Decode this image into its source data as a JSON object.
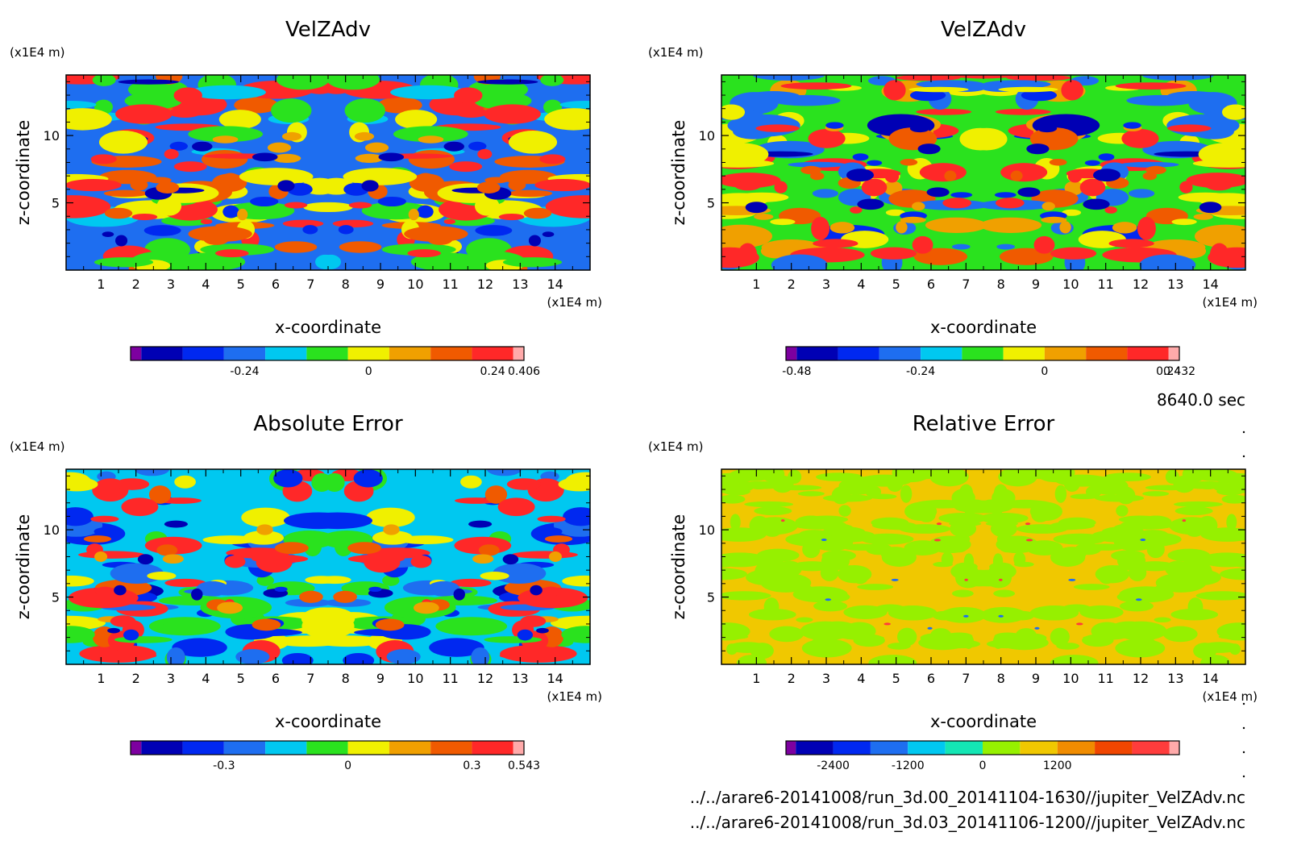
{
  "chart_data": [
    {
      "type": "heatmap",
      "title": "VelZAdv",
      "xlabel": "x-coordinate",
      "ylabel": "z-coordinate",
      "x_unit": "(x1E4 m)",
      "y_unit": "(x1E4 m)",
      "xlim": [
        0,
        15
      ],
      "ylim": [
        0,
        14.5
      ],
      "x_ticks": [
        "1",
        "2",
        "3",
        "4",
        "5",
        "6",
        "7",
        "8",
        "9",
        "10",
        "11",
        "12",
        "13",
        "14"
      ],
      "y_ticks": [
        "5",
        "10"
      ],
      "colorbar": {
        "colors": [
          "#7d00a0",
          "#0000b4",
          "#0028f0",
          "#1e6ef0",
          "#00c8f0",
          "#2ae21e",
          "#f0f000",
          "#f0a000",
          "#f05a00",
          "#ff2828",
          "#ffaaaa"
        ],
        "labels": [
          {
            "value": -0.24,
            "text": "-0.24"
          },
          {
            "value": 0,
            "text": "0"
          },
          {
            "value": 0.24,
            "text": "0.24"
          },
          {
            "value": 0.406,
            "text": "0.406"
          }
        ],
        "vmin": -0.44,
        "step": 0.08
      },
      "palette_index": [
        3,
        4,
        5,
        6,
        8,
        9
      ],
      "seed": 11
    },
    {
      "type": "heatmap",
      "title": "VelZAdv",
      "xlabel": "x-coordinate",
      "ylabel": "z-coordinate",
      "x_unit": "(x1E4 m)",
      "y_unit": "(x1E4 m)",
      "xlim": [
        0,
        15
      ],
      "ylim": [
        0,
        14.5
      ],
      "x_ticks": [
        "1",
        "2",
        "3",
        "4",
        "5",
        "6",
        "7",
        "8",
        "9",
        "10",
        "11",
        "12",
        "13",
        "14"
      ],
      "y_ticks": [
        "5",
        "10"
      ],
      "colorbar": {
        "colors": [
          "#7d00a0",
          "#0000b4",
          "#0028f0",
          "#1e6ef0",
          "#00c8f0",
          "#2ae21e",
          "#f0f000",
          "#f0a000",
          "#f05a00",
          "#ff2828",
          "#ffaaaa"
        ],
        "labels": [
          {
            "value": -0.48,
            "text": "-0.48"
          },
          {
            "value": -0.24,
            "text": "-0.24"
          },
          {
            "value": 0,
            "text": "0"
          },
          {
            "value": 0.24,
            "text": "0.24"
          },
          {
            "value": 0.432,
            "text": "0.432"
          }
        ],
        "vmin": -0.48,
        "step": 0.08
      },
      "palette_index": [
        5,
        6,
        7,
        3,
        9
      ],
      "seed": 23
    },
    {
      "type": "heatmap",
      "title": "Absolute Error",
      "xlabel": "x-coordinate",
      "ylabel": "z-coordinate",
      "x_unit": "(x1E4 m)",
      "y_unit": "(x1E4 m)",
      "xlim": [
        0,
        15
      ],
      "ylim": [
        0,
        14.5
      ],
      "x_ticks": [
        "1",
        "2",
        "3",
        "4",
        "5",
        "6",
        "7",
        "8",
        "9",
        "10",
        "11",
        "12",
        "13",
        "14"
      ],
      "y_ticks": [
        "5",
        "10"
      ],
      "colorbar": {
        "colors": [
          "#7d00a0",
          "#0000b4",
          "#0028f0",
          "#1e6ef0",
          "#00c8f0",
          "#2ae21e",
          "#f0f000",
          "#f0a000",
          "#f05a00",
          "#ff2828",
          "#ffaaaa"
        ],
        "labels": [
          {
            "value": -0.3,
            "text": "-0.3"
          },
          {
            "value": 0,
            "text": "0"
          },
          {
            "value": 0.3,
            "text": "0.3"
          },
          {
            "value": 0.543,
            "text": "0.543"
          }
        ],
        "vmin": -0.5,
        "step": 0.1
      },
      "palette_index": [
        4,
        5,
        3,
        6,
        2,
        9
      ],
      "seed": 37
    },
    {
      "type": "heatmap",
      "title": "Relative Error",
      "xlabel": "x-coordinate",
      "ylabel": "z-coordinate",
      "x_unit": "(x1E4 m)",
      "y_unit": "(x1E4 m)",
      "xlim": [
        0,
        15
      ],
      "ylim": [
        0,
        14.5
      ],
      "x_ticks": [
        "1",
        "2",
        "3",
        "4",
        "5",
        "6",
        "7",
        "8",
        "9",
        "10",
        "11",
        "12",
        "13",
        "14"
      ],
      "y_ticks": [
        "5",
        "10"
      ],
      "colorbar": {
        "colors": [
          "#7d00a0",
          "#0000b4",
          "#0028f0",
          "#1e6ef0",
          "#00c8f0",
          "#14e6b4",
          "#96f000",
          "#f0c800",
          "#f08c00",
          "#f04600",
          "#ff3c3c",
          "#ffaaaa"
        ],
        "labels": [
          {
            "value": -2400,
            "text": "-2400"
          },
          {
            "value": -1200,
            "text": "-1200"
          },
          {
            "value": 0,
            "text": "0"
          },
          {
            "value": 1200,
            "text": "1200"
          }
        ],
        "vmin": -3000,
        "step": 600
      },
      "palette_index": [
        7,
        6
      ],
      "seed": 51
    }
  ],
  "time_label": "8640.0 sec",
  "file_paths": [
    "../../arare6-20141008/run_3d.00_20141104-1630//jupiter_VelZAdv.nc",
    "../../arare6-20141008/run_3d.03_20141106-1200//jupiter_VelZAdv.nc"
  ]
}
